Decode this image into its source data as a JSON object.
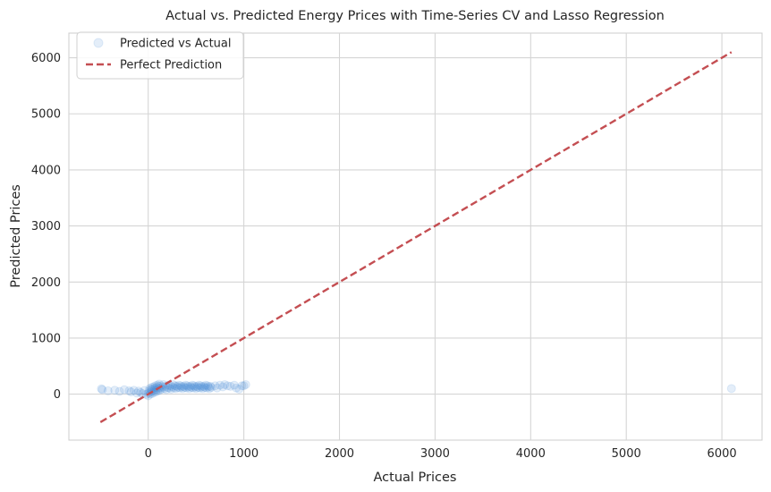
{
  "chart_data": {
    "type": "scatter",
    "title": "Actual vs. Predicted Energy Prices with Time-Series CV and Lasso Regression",
    "xlabel": "Actual Prices",
    "ylabel": "Predicted Prices",
    "xlim": [
      -830,
      6420
    ],
    "ylim": [
      -820,
      6440
    ],
    "xticks": [
      0,
      1000,
      2000,
      3000,
      4000,
      5000,
      6000
    ],
    "yticks": [
      0,
      1000,
      2000,
      3000,
      4000,
      5000,
      6000
    ],
    "grid": true,
    "legend_position": "top-left",
    "series": [
      {
        "name": "Predicted vs Actual",
        "kind": "scatter",
        "color": "#4a90d9",
        "opacity": 0.15,
        "points": [
          [
            -490,
            95
          ],
          [
            -480,
            80
          ],
          [
            -420,
            60
          ],
          [
            -350,
            70
          ],
          [
            -300,
            50
          ],
          [
            -250,
            80
          ],
          [
            -200,
            60
          ],
          [
            -180,
            40
          ],
          [
            -150,
            70
          ],
          [
            -120,
            20
          ],
          [
            -100,
            55
          ],
          [
            -80,
            30
          ],
          [
            -60,
            10
          ],
          [
            -40,
            65
          ],
          [
            -20,
            -5
          ],
          [
            0,
            -30
          ],
          [
            5,
            20
          ],
          [
            10,
            60
          ],
          [
            15,
            100
          ],
          [
            20,
            0
          ],
          [
            25,
            40
          ],
          [
            30,
            80
          ],
          [
            35,
            120
          ],
          [
            40,
            10
          ],
          [
            45,
            50
          ],
          [
            50,
            90
          ],
          [
            55,
            130
          ],
          [
            60,
            30
          ],
          [
            65,
            70
          ],
          [
            70,
            110
          ],
          [
            75,
            150
          ],
          [
            80,
            40
          ],
          [
            85,
            80
          ],
          [
            90,
            120
          ],
          [
            95,
            160
          ],
          [
            100,
            60
          ],
          [
            105,
            100
          ],
          [
            110,
            140
          ],
          [
            115,
            180
          ],
          [
            120,
            70
          ],
          [
            125,
            110
          ],
          [
            130,
            150
          ],
          [
            140,
            90
          ],
          [
            150,
            130
          ],
          [
            160,
            170
          ],
          [
            170,
            100
          ],
          [
            180,
            140
          ],
          [
            190,
            80
          ],
          [
            200,
            120
          ],
          [
            210,
            160
          ],
          [
            220,
            110
          ],
          [
            230,
            150
          ],
          [
            240,
            90
          ],
          [
            250,
            130
          ],
          [
            260,
            170
          ],
          [
            270,
            110
          ],
          [
            280,
            150
          ],
          [
            290,
            100
          ],
          [
            300,
            140
          ],
          [
            310,
            120
          ],
          [
            320,
            160
          ],
          [
            330,
            110
          ],
          [
            340,
            150
          ],
          [
            350,
            130
          ],
          [
            360,
            100
          ],
          [
            370,
            140
          ],
          [
            380,
            120
          ],
          [
            390,
            160
          ],
          [
            400,
            110
          ],
          [
            410,
            150
          ],
          [
            420,
            130
          ],
          [
            430,
            100
          ],
          [
            440,
            140
          ],
          [
            450,
            120
          ],
          [
            460,
            160
          ],
          [
            470,
            110
          ],
          [
            480,
            150
          ],
          [
            490,
            130
          ],
          [
            500,
            100
          ],
          [
            510,
            140
          ],
          [
            520,
            120
          ],
          [
            530,
            160
          ],
          [
            540,
            110
          ],
          [
            550,
            150
          ],
          [
            560,
            130
          ],
          [
            570,
            100
          ],
          [
            580,
            140
          ],
          [
            590,
            120
          ],
          [
            600,
            160
          ],
          [
            610,
            110
          ],
          [
            620,
            150
          ],
          [
            630,
            130
          ],
          [
            640,
            100
          ],
          [
            650,
            140
          ],
          [
            660,
            120
          ],
          [
            700,
            150
          ],
          [
            720,
            110
          ],
          [
            750,
            160
          ],
          [
            780,
            130
          ],
          [
            800,
            170
          ],
          [
            830,
            150
          ],
          [
            860,
            140
          ],
          [
            900,
            160
          ],
          [
            920,
            110
          ],
          [
            950,
            90
          ],
          [
            980,
            150
          ],
          [
            1000,
            150
          ],
          [
            1020,
            170
          ],
          [
            6100,
            100
          ]
        ]
      },
      {
        "name": "Perfect Prediction",
        "kind": "line",
        "color": "#c44e52",
        "dashed": true,
        "x": [
          -500,
          6100
        ],
        "y": [
          -500,
          6100
        ]
      }
    ]
  }
}
